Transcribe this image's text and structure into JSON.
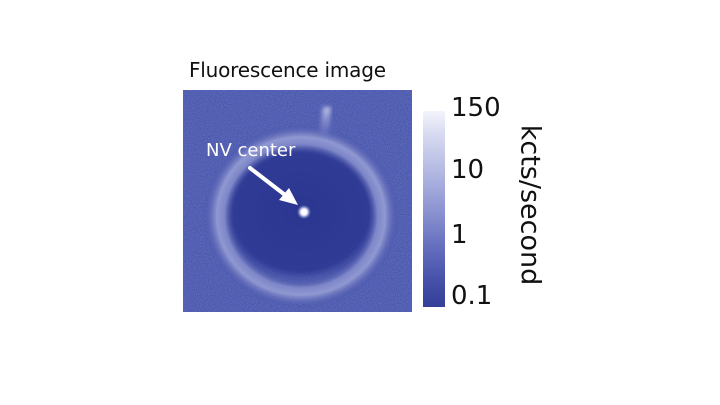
{
  "figure": {
    "title": "Fluorescence image",
    "annotation": "NV center",
    "colors": {
      "background_dark": "#2e3b94",
      "background_mid": "#3c4aa6",
      "ring": "#8a93d0",
      "spot": "#ffffff"
    }
  },
  "colorbar": {
    "unit": "kcts/second",
    "scale": "log",
    "ticks": [
      "150",
      "10",
      "1",
      "0.1"
    ],
    "range": [
      0.1,
      150
    ]
  }
}
